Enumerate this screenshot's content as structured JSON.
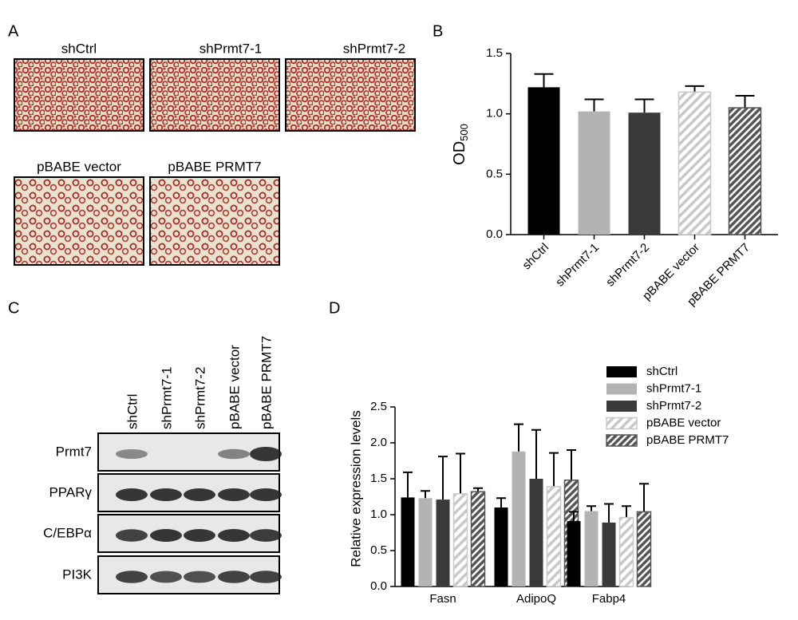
{
  "panels": {
    "a": {
      "label": "A",
      "images": [
        "shCtrl",
        "shPrmt7-1",
        "shPrmt7-2",
        "pBABE vector",
        "pBABE PRMT7"
      ]
    },
    "c": {
      "label": "C",
      "lanes": [
        "shCtrl",
        "shPrmt7-1",
        "shPrmt7-2",
        "pBABE vector",
        "pBABE PRMT7"
      ],
      "rows": [
        "Prmt7",
        "PPARγ",
        "C/EBPα",
        "PI3K"
      ]
    }
  },
  "chart_data": [
    {
      "type": "bar",
      "panel_label": "B",
      "y_label": {
        "text": "OD",
        "subscript": "500"
      },
      "categories": [
        "shCtrl",
        "shPrmt7-1",
        "shPrmt7-2",
        "pBABE vector",
        "pBABE PRMT7"
      ],
      "values": [
        1.22,
        1.02,
        1.01,
        1.18,
        1.05
      ],
      "errors": [
        0.11,
        0.1,
        0.11,
        0.05,
        0.1
      ],
      "colors": [
        "#000000",
        "#b3b3b3",
        "#3a3a3a",
        "#c8c8c8",
        "#555555"
      ],
      "hatch": [
        false,
        false,
        false,
        true,
        true
      ],
      "ylim": [
        0,
        1.5
      ],
      "yticks": [
        {
          "value": 0,
          "label": "0.0"
        },
        {
          "value": 0.5,
          "label": "0.5"
        },
        {
          "value": 1,
          "label": "1.0"
        },
        {
          "value": 1.5,
          "label": "1.5"
        }
      ]
    },
    {
      "type": "grouped-bar",
      "panel_label": "D",
      "y_label": "Relative expression levels",
      "categories": [
        "Fasn",
        "AdipoQ",
        "Fabp4"
      ],
      "series": [
        {
          "name": "shCtrl",
          "color": "#000000",
          "hatch": false,
          "values": [
            1.24,
            1.1,
            0.91
          ],
          "errors": [
            0.35,
            0.13,
            0.13
          ]
        },
        {
          "name": "shPrmt7-1",
          "color": "#b3b3b3",
          "hatch": false,
          "values": [
            1.23,
            1.88,
            1.05
          ],
          "errors": [
            0.1,
            0.38,
            0.07
          ]
        },
        {
          "name": "shPrmt7-2",
          "color": "#3a3a3a",
          "hatch": false,
          "values": [
            1.21,
            1.5,
            0.89
          ],
          "errors": [
            0.6,
            0.68,
            0.26
          ]
        },
        {
          "name": "pBABE vector",
          "color": "#c8c8c8",
          "hatch": true,
          "values": [
            1.29,
            1.39,
            0.96
          ],
          "errors": [
            0.56,
            0.47,
            0.16
          ]
        },
        {
          "name": "pBABE PRMT7",
          "color": "#555555",
          "hatch": true,
          "values": [
            1.32,
            1.48,
            1.04
          ],
          "errors": [
            0.05,
            0.42,
            0.39
          ]
        }
      ],
      "legend": "upper-right",
      "ylim": [
        0,
        2.5
      ],
      "yticks": [
        {
          "value": 0,
          "label": "0.0"
        },
        {
          "value": 0.5,
          "label": "0.5"
        },
        {
          "value": 1,
          "label": "1.0"
        },
        {
          "value": 1.5,
          "label": "1.5"
        },
        {
          "value": 2,
          "label": "2.0"
        },
        {
          "value": 2.5,
          "label": "2.5"
        }
      ]
    }
  ]
}
